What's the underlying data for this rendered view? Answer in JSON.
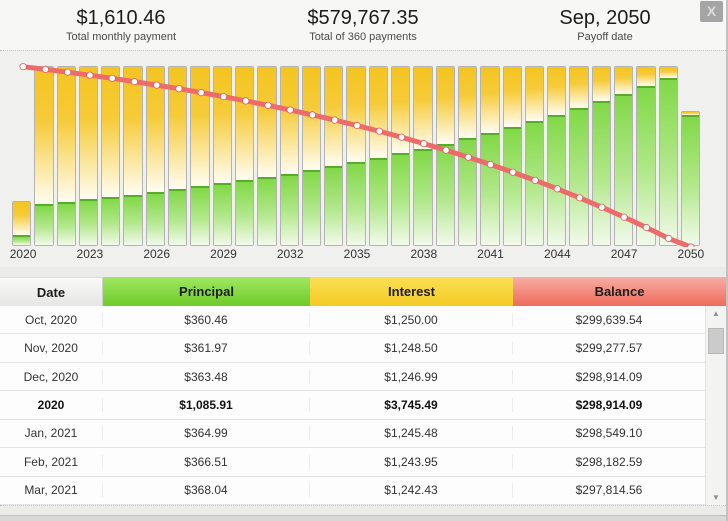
{
  "header": {
    "stats": [
      {
        "value": "$1,610.46",
        "label": "Total monthly payment"
      },
      {
        "value": "$579,767.35",
        "label": "Total of 360 payments"
      },
      {
        "value": "Sep, 2050",
        "label": "Payoff date"
      }
    ],
    "close_label": "X"
  },
  "chart_data": {
    "type": "bar",
    "subtype": "stacked-bars-with-line",
    "title": "",
    "xlabel": "",
    "ylabel": "",
    "x": [
      2020,
      2021,
      2022,
      2023,
      2024,
      2025,
      2026,
      2027,
      2028,
      2029,
      2030,
      2031,
      2032,
      2033,
      2034,
      2035,
      2036,
      2037,
      2038,
      2039,
      2040,
      2041,
      2042,
      2043,
      2044,
      2045,
      2046,
      2047,
      2048,
      2049,
      2050
    ],
    "tick_years": [
      2020,
      2023,
      2026,
      2029,
      2032,
      2035,
      2038,
      2041,
      2044,
      2047,
      2050
    ],
    "full_year_payment": 19325.52,
    "balance_range": [
      0,
      300000
    ],
    "series": [
      {
        "name": "Principal",
        "type": "bar-bottom",
        "color": "#76d236",
        "values": [
          1085.91,
          4481.7,
          4711.0,
          4952.0,
          5205.4,
          5471.7,
          5751.6,
          6045.9,
          6355.2,
          6680.3,
          7022.1,
          7381.4,
          7759.0,
          8155.9,
          8573.2,
          9011.8,
          9472.8,
          9957.4,
          10466.8,
          11002.3,
          11565.2,
          12156.8,
          12778.8,
          13432.6,
          14119.8,
          14842.2,
          15601.5,
          16399.7,
          17238.7,
          18120.6,
          14175.4
        ]
      },
      {
        "name": "Interest",
        "type": "bar-top",
        "color": "#f6c62e",
        "values": [
          3745.49,
          14843.8,
          14614.5,
          14373.5,
          14120.1,
          13853.8,
          13573.9,
          13279.6,
          12970.3,
          12645.2,
          12303.4,
          11944.1,
          11566.5,
          11169.6,
          10752.3,
          10313.7,
          9852.7,
          9368.1,
          8858.7,
          8323.2,
          7760.3,
          7168.7,
          6546.7,
          5892.9,
          5205.7,
          4483.3,
          3724.0,
          2925.8,
          2086.8,
          1204.9,
          318.7
        ]
      },
      {
        "name": "Balance",
        "type": "line",
        "color": "#ee6b6b",
        "marker": "white-dot",
        "values": [
          298914,
          294432,
          289721,
          284769,
          279564,
          274092,
          268341,
          262295,
          255940,
          249259,
          242237,
          234856,
          227097,
          218941,
          210368,
          201356,
          191883,
          181926,
          171459,
          160457,
          148891,
          136735,
          123956,
          110523,
          96403,
          81561,
          65960,
          49560,
          32321,
          14175,
          0
        ]
      }
    ]
  },
  "table": {
    "columns": [
      {
        "label": "Date",
        "color": "#ededec"
      },
      {
        "label": "Principal",
        "color": "#76d236"
      },
      {
        "label": "Interest",
        "color": "#f6cf39"
      },
      {
        "label": "Balance",
        "color": "#f07060"
      }
    ],
    "rows": [
      {
        "date": "Oct, 2020",
        "principal": "$360.46",
        "interest": "$1,250.00",
        "balance": "$299,639.54",
        "bold": false
      },
      {
        "date": "Nov, 2020",
        "principal": "$361.97",
        "interest": "$1,248.50",
        "balance": "$299,277.57",
        "bold": false
      },
      {
        "date": "Dec, 2020",
        "principal": "$363.48",
        "interest": "$1,246.99",
        "balance": "$298,914.09",
        "bold": false
      },
      {
        "date": "2020",
        "principal": "$1,085.91",
        "interest": "$3,745.49",
        "balance": "$298,914.09",
        "bold": true
      },
      {
        "date": "Jan, 2021",
        "principal": "$364.99",
        "interest": "$1,245.48",
        "balance": "$298,549.10",
        "bold": false
      },
      {
        "date": "Feb, 2021",
        "principal": "$366.51",
        "interest": "$1,243.95",
        "balance": "$298,182.59",
        "bold": false
      },
      {
        "date": "Mar, 2021",
        "principal": "$368.04",
        "interest": "$1,242.43",
        "balance": "$297,814.56",
        "bold": false
      }
    ]
  }
}
